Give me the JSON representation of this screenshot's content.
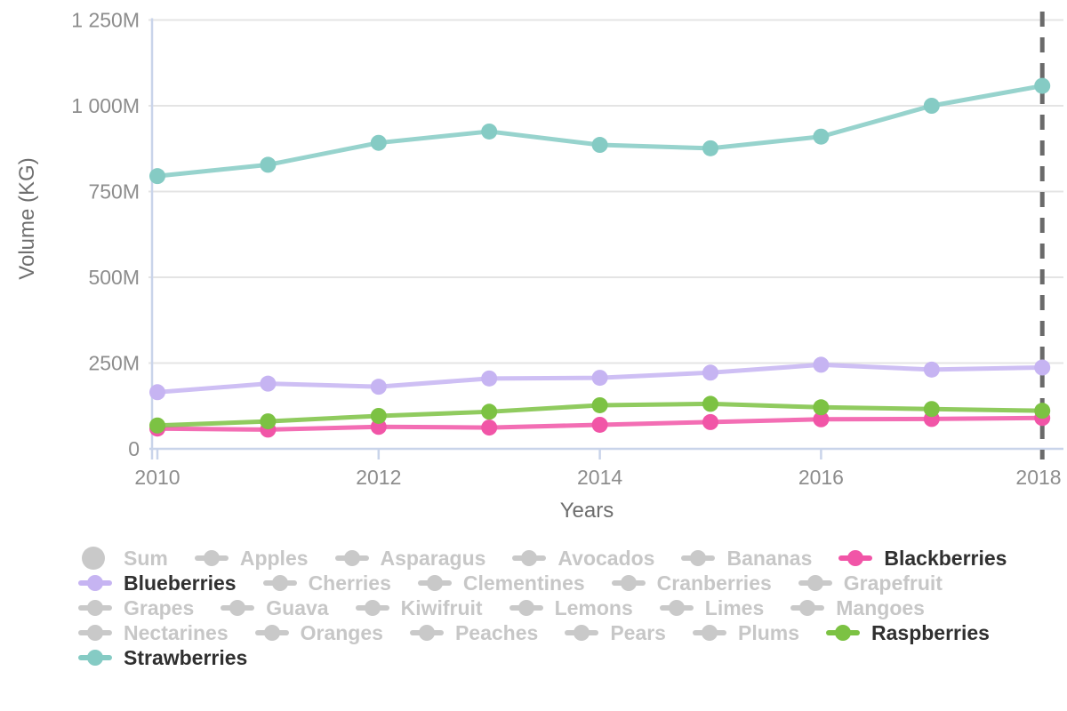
{
  "chart_data": {
    "type": "line",
    "title": "",
    "xlabel": "Years",
    "ylabel": "Volume (KG)",
    "x": [
      2010,
      2011,
      2012,
      2013,
      2014,
      2015,
      2016,
      2017,
      2018
    ],
    "x_ticks": [
      2010,
      2012,
      2014,
      2016,
      2018
    ],
    "x_tick_labels": [
      "2010",
      "2012",
      "2014",
      "2016",
      "2018"
    ],
    "y_ticks": [
      0,
      250,
      500,
      750,
      1000,
      1250
    ],
    "y_tick_labels": [
      "0",
      "250M",
      "500M",
      "750M",
      "1 000M",
      "1 250M"
    ],
    "ylim": [
      0,
      1250
    ],
    "value_unit": "M KG",
    "grid": "horizontal",
    "legend_position": "bottom",
    "highlight_x": 2018,
    "series": [
      {
        "name": "Blackberries",
        "color": "#f155a7",
        "values": [
          59,
          56,
          64,
          62,
          70,
          78,
          86,
          87,
          90
        ]
      },
      {
        "name": "Blueberries",
        "color": "#c6b4f2",
        "values": [
          165,
          190,
          181,
          205,
          207,
          222,
          245,
          231,
          237
        ]
      },
      {
        "name": "Raspberries",
        "color": "#7cc243",
        "values": [
          68,
          80,
          96,
          108,
          127,
          131,
          121,
          116,
          111
        ]
      },
      {
        "name": "Strawberries",
        "color": "#85cbc4",
        "values": [
          795,
          828,
          892,
          925,
          886,
          876,
          910,
          1000,
          1058
        ]
      }
    ]
  },
  "legend": {
    "rows": [
      [
        {
          "label": "Sum",
          "active": false,
          "marker": "circle"
        },
        {
          "label": "Apples",
          "active": false,
          "marker": "line-dot"
        },
        {
          "label": "Asparagus",
          "active": false,
          "marker": "line-dot"
        },
        {
          "label": "Avocados",
          "active": false,
          "marker": "line-dot"
        },
        {
          "label": "Bananas",
          "active": false,
          "marker": "line-dot"
        },
        {
          "label": "Blackberries",
          "active": true,
          "color": "#f155a7",
          "marker": "line-dot"
        }
      ],
      [
        {
          "label": "Blueberries",
          "active": true,
          "color": "#c6b4f2",
          "marker": "line-dot"
        },
        {
          "label": "Cherries",
          "active": false,
          "marker": "line-dot"
        },
        {
          "label": "Clementines",
          "active": false,
          "marker": "line-dot"
        },
        {
          "label": "Cranberries",
          "active": false,
          "marker": "line-dot"
        },
        {
          "label": "Grapefruit",
          "active": false,
          "marker": "line-dot"
        }
      ],
      [
        {
          "label": "Grapes",
          "active": false,
          "marker": "line-dot"
        },
        {
          "label": "Guava",
          "active": false,
          "marker": "line-dot"
        },
        {
          "label": "Kiwifruit",
          "active": false,
          "marker": "line-dot"
        },
        {
          "label": "Lemons",
          "active": false,
          "marker": "line-dot"
        },
        {
          "label": "Limes",
          "active": false,
          "marker": "line-dot"
        },
        {
          "label": "Mangoes",
          "active": false,
          "marker": "line-dot"
        }
      ],
      [
        {
          "label": "Nectarines",
          "active": false,
          "marker": "line-dot"
        },
        {
          "label": "Oranges",
          "active": false,
          "marker": "line-dot"
        },
        {
          "label": "Peaches",
          "active": false,
          "marker": "line-dot"
        },
        {
          "label": "Pears",
          "active": false,
          "marker": "line-dot"
        },
        {
          "label": "Plums",
          "active": false,
          "marker": "line-dot"
        },
        {
          "label": "Raspberries",
          "active": true,
          "color": "#7cc243",
          "marker": "line-dot"
        }
      ],
      [
        {
          "label": "Strawberries",
          "active": true,
          "color": "#85cbc4",
          "marker": "line-dot"
        }
      ]
    ],
    "disabled_marker_color": "#c9c9c9",
    "disabled_text_color": "#c7c7c7",
    "active_text_color": "#303030"
  },
  "colors": {
    "axis_line": "#c9d4ea",
    "gridline": "#e4e4e4",
    "tick_text": "#8d8d8d",
    "axis_title_text": "#6e6e6e",
    "dashed_marker_line": "#6a6a6a",
    "background": "#ffffff"
  }
}
